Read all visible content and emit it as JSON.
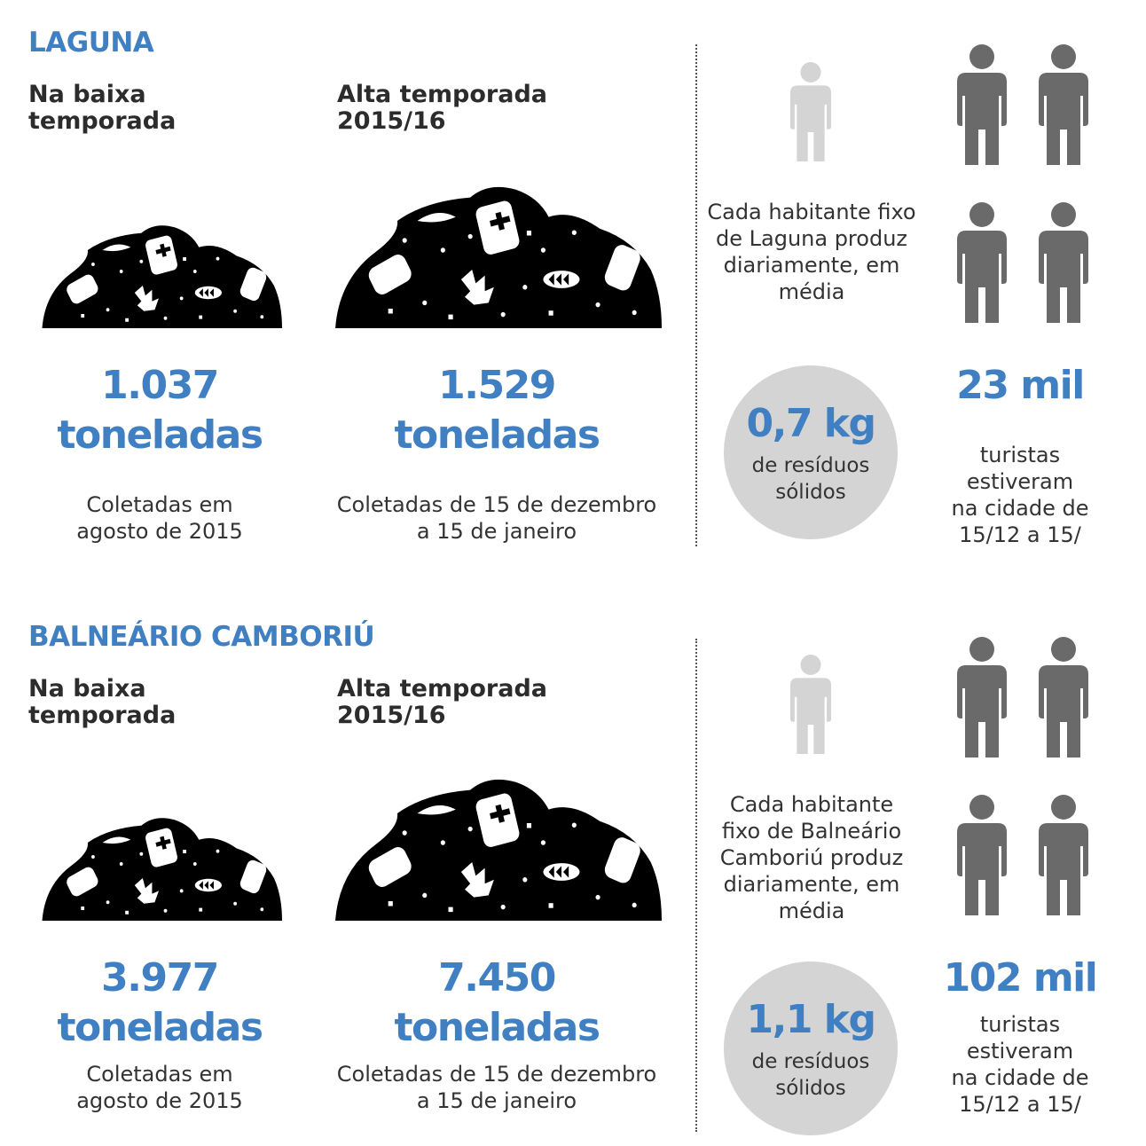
{
  "colors": {
    "accent": "#3f7fc2",
    "light_gray": "#d4d4d4",
    "dark_gray": "#6a6a6a",
    "text": "#333333"
  },
  "icons": [
    "garbage-pile-icon",
    "person-icon"
  ],
  "sections": [
    {
      "city": "LAGUNA",
      "low_header": "Na baixa\ntemporada",
      "high_header": "Alta temporada\n2015/16",
      "low_value": "1.037",
      "low_unit": "toneladas",
      "low_desc": "Coletadas em\nagosto de 2015",
      "high_value": "1.529",
      "high_unit": "toneladas",
      "high_desc": "Coletadas de 15 de dezembro\na 15 de janeiro",
      "resident_text": "Cada habitante fixo\nde Laguna produz\ndiariamente, em\nmédia",
      "kg_value": "0,7 kg",
      "kg_label": "de resíduos\nsólidos",
      "tourists_value": "23 mil",
      "tourists_desc": "turistas\nestiveram\nna cidade de\n15/12 a 15/"
    },
    {
      "city": "BALNEÁRIO CAMBORIÚ",
      "low_header": "Na baixa\ntemporada",
      "high_header": "Alta temporada\n2015/16",
      "low_value": "3.977",
      "low_unit": "toneladas",
      "low_desc": "Coletadas em\nagosto de 2015",
      "high_value": "7.450",
      "high_unit": "toneladas",
      "high_desc": "Coletadas de 15 de dezembro\na 15 de janeiro",
      "resident_text": "Cada habitante\nfixo de Balneário\nCamboriú produz\ndiariamente, em\nmédia",
      "kg_value": "1,1 kg",
      "kg_label": "de resíduos\nsólidos",
      "tourists_value": "102 mil",
      "tourists_desc": "turistas\nestiveram\nna cidade de\n15/12 a 15/"
    }
  ]
}
